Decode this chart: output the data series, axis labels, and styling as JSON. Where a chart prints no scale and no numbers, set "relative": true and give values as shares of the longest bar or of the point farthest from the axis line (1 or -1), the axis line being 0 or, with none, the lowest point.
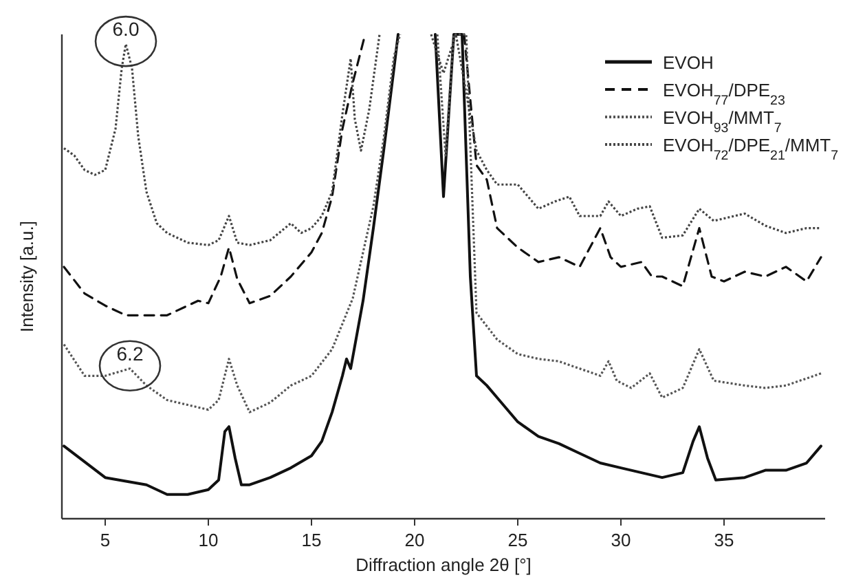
{
  "chart_data": {
    "type": "line",
    "relative": true,
    "xlabel": "Diffraction angle 2θ [°]",
    "ylabel": "Intensity [a.u.]",
    "xlim": [
      2.9,
      39.9
    ],
    "xticks": [
      5,
      10,
      15,
      20,
      25,
      30,
      35
    ],
    "legend": "top right",
    "grid": false,
    "annotations": [
      {
        "text": "6.0",
        "x": 6.0,
        "y": 0.98
      },
      {
        "text": "6.2",
        "x": 6.2,
        "y": 0.31
      }
    ],
    "series": [
      {
        "name": "EVOH",
        "color": "#111111",
        "line_style": "solid",
        "x": [
          3,
          5,
          7,
          8,
          9,
          10,
          10.5,
          10.8,
          11,
          11.3,
          11.6,
          12,
          13,
          14,
          15,
          15.5,
          16,
          16.5,
          16.7,
          16.9,
          17.5,
          18,
          18.5,
          19,
          19.2,
          20,
          21.0,
          21.4,
          21.9,
          22.3,
          22.7,
          23,
          23.5,
          24,
          25,
          26,
          27,
          28,
          29,
          30,
          31,
          32,
          33,
          33.5,
          33.8,
          34.2,
          34.6,
          36,
          37,
          38,
          39,
          39.7
        ],
        "values": [
          0.15,
          0.085,
          0.07,
          0.05,
          0.05,
          0.06,
          0.08,
          0.18,
          0.19,
          0.125,
          0.07,
          0.07,
          0.085,
          0.105,
          0.13,
          0.16,
          0.22,
          0.295,
          0.33,
          0.31,
          0.45,
          0.6,
          0.76,
          0.93,
          1,
          null,
          1,
          0.665,
          1,
          1,
          0.5,
          0.295,
          0.275,
          0.25,
          0.2,
          0.17,
          0.155,
          0.135,
          0.115,
          0.105,
          0.095,
          0.085,
          0.095,
          0.16,
          0.19,
          0.125,
          0.08,
          0.085,
          0.1,
          0.1,
          0.115,
          0.15
        ]
      },
      {
        "name": "EVOH$_{77}$/DPE$_{23}$",
        "color": "#111111",
        "line_style": "dashed",
        "x": [
          3,
          4,
          5,
          6,
          7,
          8,
          9,
          9.5,
          10,
          10.6,
          11,
          11.4,
          12,
          13,
          14,
          15,
          15.5,
          16,
          16.5,
          17,
          17.6,
          20,
          22.4,
          23,
          23.5,
          24,
          25,
          26,
          27,
          28,
          29,
          29.5,
          30,
          31,
          31.5,
          32,
          33,
          33.8,
          34.4,
          35,
          36,
          37,
          38,
          39,
          39.7
        ],
        "values": [
          0.52,
          0.465,
          0.44,
          0.42,
          0.42,
          0.42,
          0.44,
          0.45,
          0.445,
          0.5,
          0.56,
          0.495,
          0.445,
          0.46,
          0.5,
          0.55,
          0.59,
          0.665,
          0.805,
          0.9,
          1,
          null,
          1,
          0.73,
          0.7,
          0.6,
          0.56,
          0.53,
          0.54,
          0.52,
          0.6,
          0.54,
          0.52,
          0.53,
          0.5,
          0.5,
          0.48,
          0.6,
          0.5,
          0.49,
          0.51,
          0.5,
          0.52,
          0.49,
          0.54
        ]
      },
      {
        "name": "EVOH$_{93}$/MMT$_{7}$",
        "color": "#555555",
        "line_style": "dotted",
        "x": [
          3,
          4,
          5,
          6.2,
          7,
          8,
          9,
          10,
          10.5,
          11,
          11.4,
          12,
          13,
          14,
          15,
          16,
          17,
          18,
          18.5,
          19,
          19.3,
          20,
          21.1,
          21.5,
          21.9,
          22.5,
          23,
          24,
          25,
          26,
          27,
          28,
          29,
          29.4,
          29.8,
          30.5,
          31.4,
          32,
          33,
          33.8,
          34.5,
          36,
          37,
          38,
          39.7
        ],
        "values": [
          0.36,
          0.295,
          0.295,
          0.31,
          0.275,
          0.245,
          0.235,
          0.225,
          0.245,
          0.33,
          0.275,
          0.22,
          0.24,
          0.275,
          0.295,
          0.35,
          0.455,
          0.645,
          0.785,
          0.955,
          1,
          null,
          1,
          0.75,
          1,
          1,
          0.425,
          0.37,
          0.34,
          0.33,
          0.325,
          0.31,
          0.295,
          0.325,
          0.285,
          0.27,
          0.3,
          0.25,
          0.27,
          0.35,
          0.285,
          0.275,
          0.27,
          0.275,
          0.3
        ]
      },
      {
        "name": "EVOH$_{72}$/DPE$_{21}$/MMT$_{7}$",
        "color": "#444444",
        "line_style": "dotted",
        "x": [
          3,
          3.5,
          4,
          4.5,
          5,
          5.5,
          5.8,
          6.0,
          6.3,
          6.6,
          7,
          7.5,
          8,
          9,
          10,
          10.5,
          11,
          11.4,
          12,
          13,
          14,
          14.5,
          15,
          15.5,
          16,
          16.5,
          16.9,
          17.1,
          17.4,
          17.8,
          18.3,
          20,
          20.8,
          21.4,
          22,
          23,
          23.5,
          24,
          25,
          26,
          26.8,
          27.5,
          28,
          29,
          29.4,
          30,
          30.8,
          31.4,
          32,
          33,
          33.8,
          34.5,
          36,
          37,
          38,
          39,
          39.7
        ],
        "values": [
          0.765,
          0.75,
          0.72,
          0.71,
          0.72,
          0.805,
          0.93,
          0.98,
          0.93,
          0.79,
          0.675,
          0.61,
          0.59,
          0.57,
          0.565,
          0.575,
          0.625,
          0.57,
          0.565,
          0.575,
          0.61,
          0.59,
          0.6,
          0.625,
          0.675,
          0.835,
          0.95,
          0.825,
          0.76,
          0.845,
          1,
          null,
          1,
          0.92,
          1,
          0.76,
          0.72,
          0.69,
          0.69,
          0.64,
          0.655,
          0.665,
          0.625,
          0.625,
          0.655,
          0.625,
          0.64,
          0.645,
          0.58,
          0.585,
          0.64,
          0.615,
          0.63,
          0.605,
          0.59,
          0.6,
          0.6
        ]
      }
    ]
  }
}
